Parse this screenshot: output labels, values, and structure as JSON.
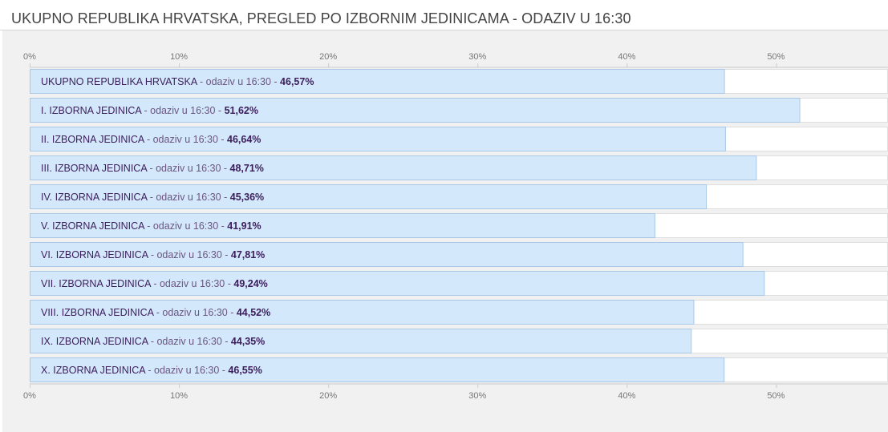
{
  "chart_data": {
    "type": "bar",
    "orientation": "horizontal",
    "title": "UKUPNO REPUBLIKA HRVATSKA, PREGLED PO IZBORNIM JEDINICAMA - ODAZIV U 16:30",
    "categories": [
      "UKUPNO REPUBLIKA HRVATSKA",
      "I. IZBORNA JEDINICA",
      "II. IZBORNA JEDINICA",
      "III. IZBORNA JEDINICA",
      "IV. IZBORNA JEDINICA",
      "V. IZBORNA JEDINICA",
      "VI. IZBORNA JEDINICA",
      "VII. IZBORNA JEDINICA",
      "VIII. IZBORNA JEDINICA",
      "IX. IZBORNA JEDINICA",
      "X. IZBORNA JEDINICA"
    ],
    "label_middle": " - odaziv u 16:30 - ",
    "values": [
      46.57,
      51.62,
      46.64,
      48.71,
      45.36,
      41.91,
      47.81,
      49.24,
      44.52,
      44.35,
      46.55
    ],
    "value_labels": [
      "46,57%",
      "51,62%",
      "46,64%",
      "48,71%",
      "45,36%",
      "41,91%",
      "47,81%",
      "49,24%",
      "44,52%",
      "44,35%",
      "46,55%"
    ],
    "xlim": [
      0,
      57.5
    ],
    "ticks": [
      0,
      10,
      20,
      30,
      40,
      50
    ],
    "tick_labels": [
      "0%",
      "10%",
      "20%",
      "30%",
      "40%",
      "50%"
    ],
    "xlabel": "",
    "ylabel": "",
    "grid": true,
    "colors": {
      "bar_fill": "#d4e8fb",
      "bar_stroke": "#a9c8e6",
      "track": "#ffffff",
      "grid": "#cccccc"
    }
  }
}
